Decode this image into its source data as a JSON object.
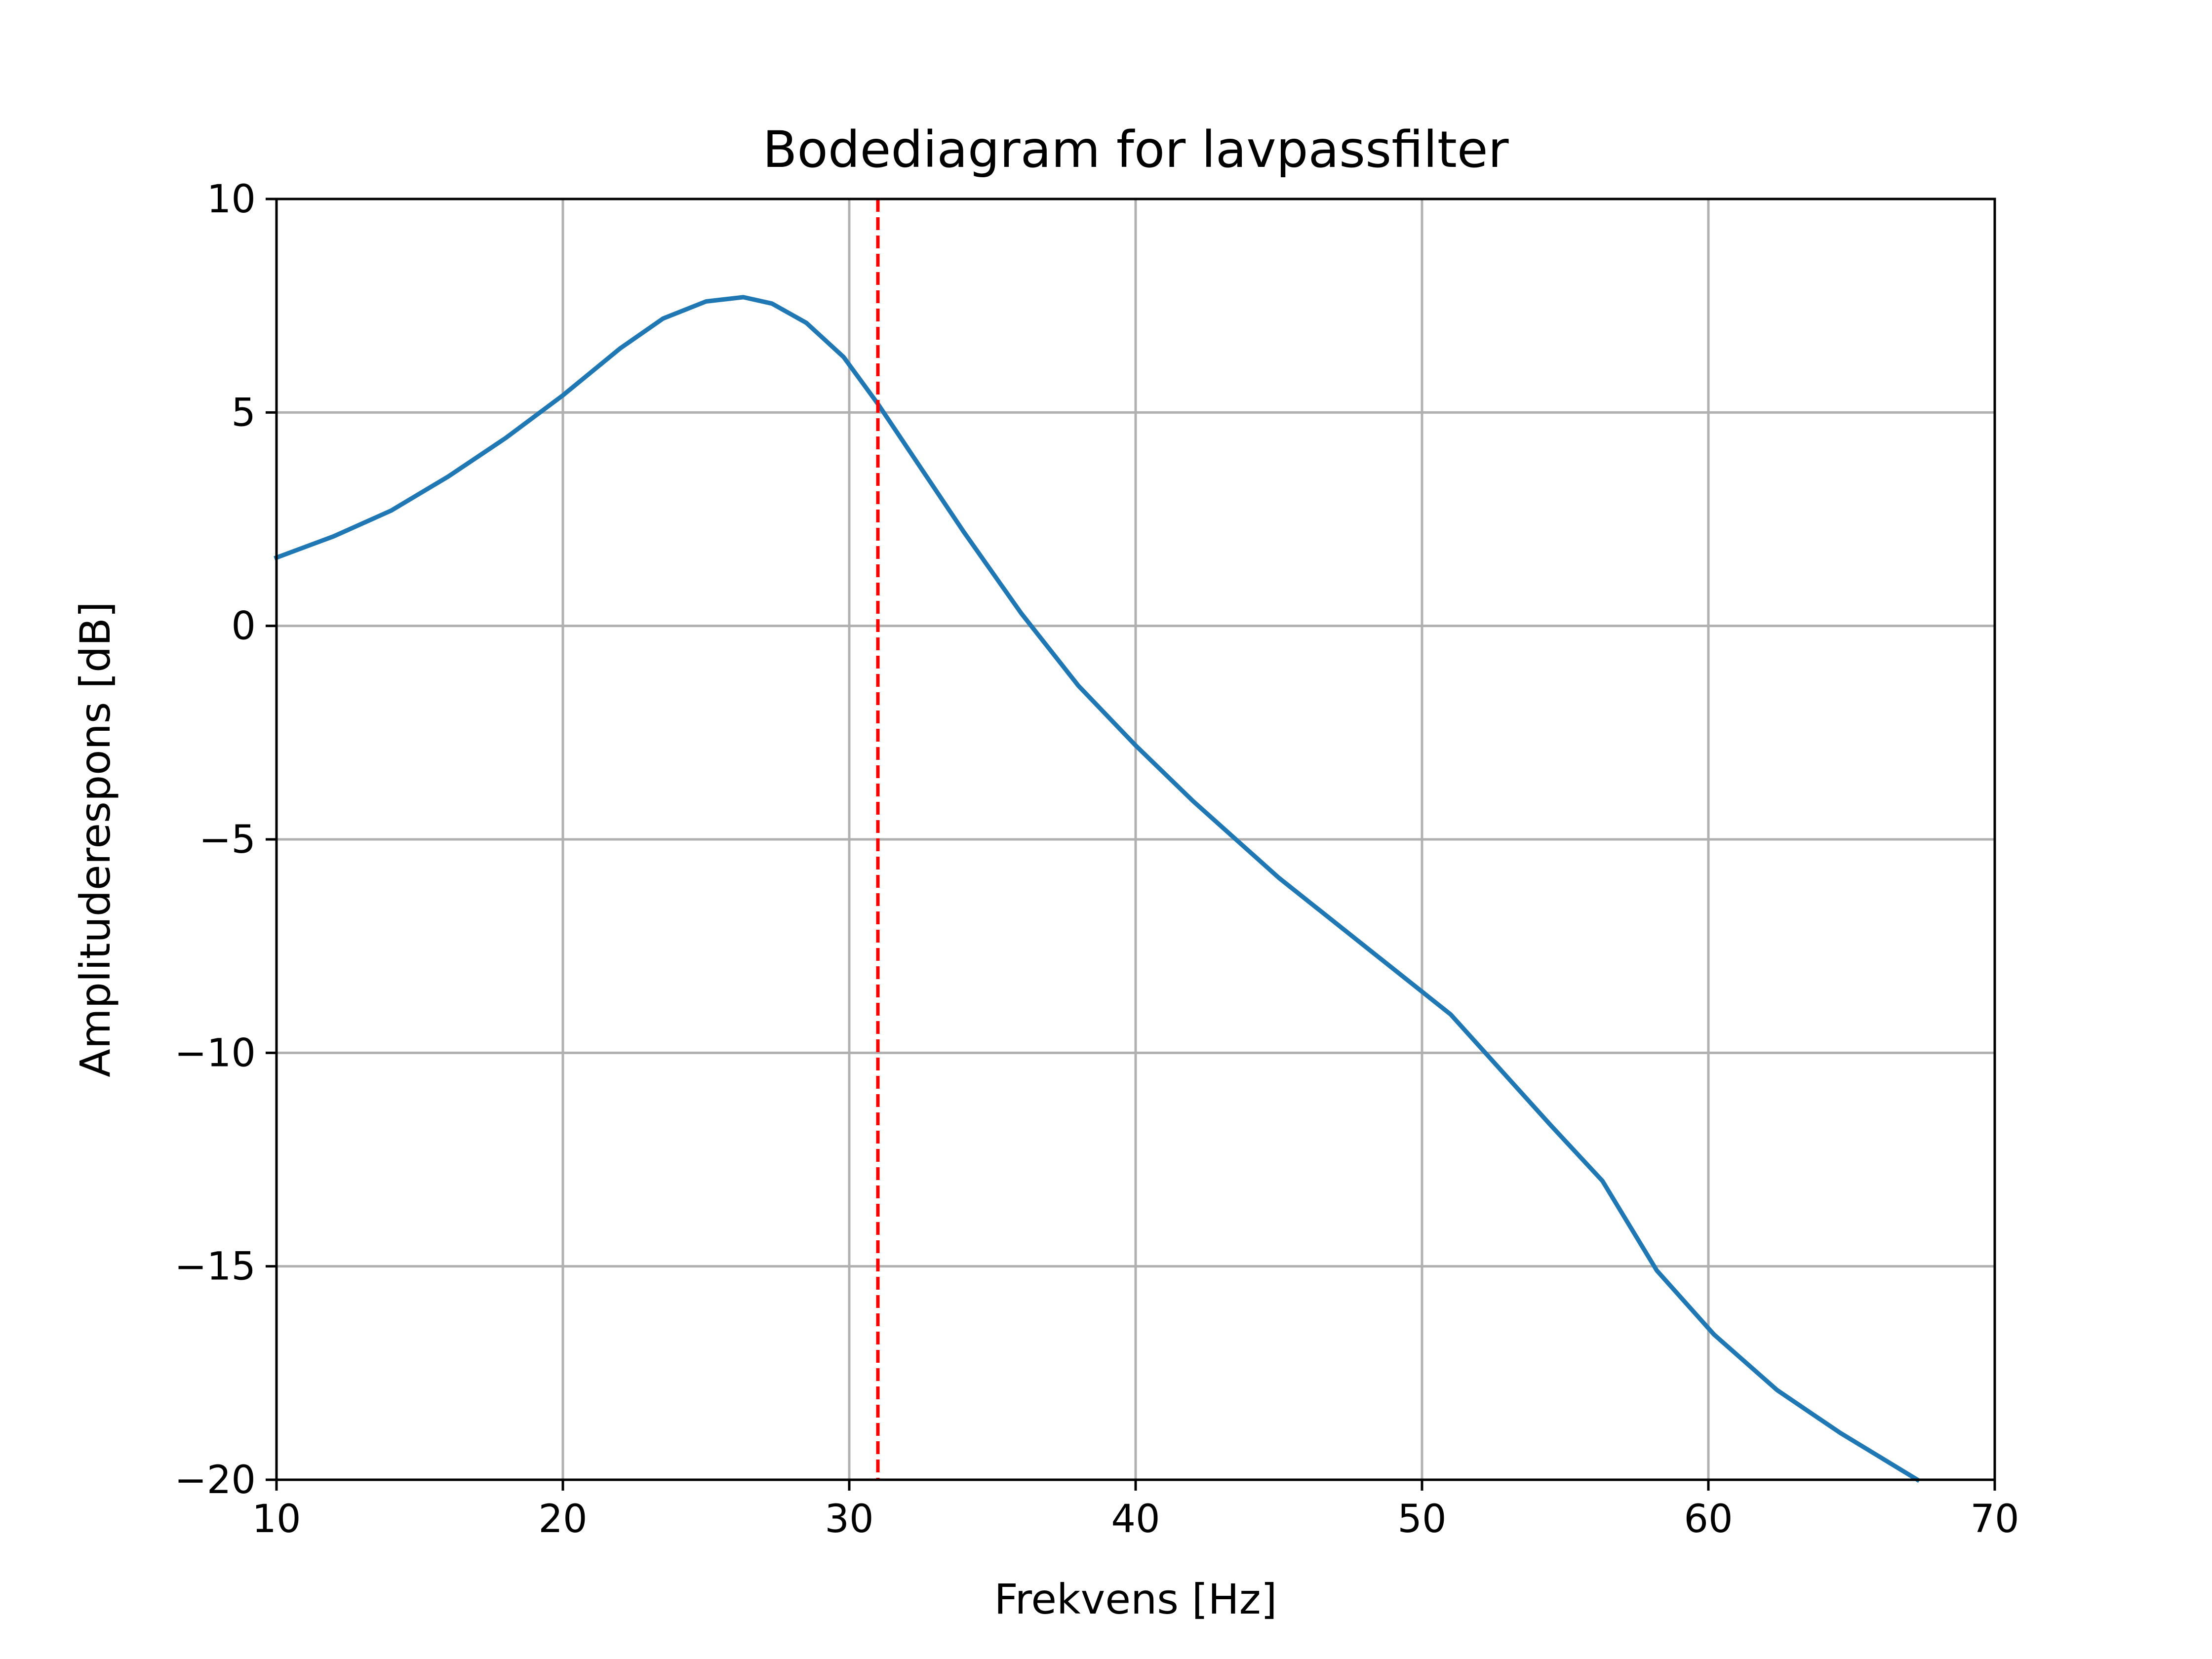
{
  "chart_data": {
    "type": "line",
    "title": "Bodediagram for lavpassfilter",
    "xlabel": "Frekvens [Hz]",
    "ylabel": "Amplituderespons [dB]",
    "xlim": [
      10,
      70
    ],
    "ylim": [
      -20,
      10
    ],
    "xticks": [
      10,
      20,
      30,
      40,
      50,
      60,
      70
    ],
    "xtick_labels": [
      "10",
      "20",
      "30",
      "40",
      "50",
      "60",
      "70"
    ],
    "yticks": [
      -20,
      -15,
      -10,
      -5,
      0,
      5,
      10
    ],
    "ytick_labels": [
      "−20",
      "−15",
      "−10",
      "−5",
      "0",
      "5",
      "10"
    ],
    "grid": true,
    "series": [
      {
        "color": "#1f77b4",
        "x": [
          10,
          12,
          14,
          16,
          18,
          20,
          22,
          23.5,
          25,
          26.3,
          27.3,
          28.5,
          29.8,
          31,
          32.5,
          34,
          36,
          38,
          40,
          42,
          45,
          48,
          51,
          54.5,
          56.3,
          58.2,
          60.2,
          62.4,
          64.6,
          67.3
        ],
        "y": [
          1.6,
          2.1,
          2.7,
          3.5,
          4.4,
          5.4,
          6.5,
          7.2,
          7.6,
          7.7,
          7.55,
          7.1,
          6.3,
          5.2,
          3.7,
          2.2,
          0.3,
          -1.4,
          -2.8,
          -4.1,
          -5.9,
          -7.5,
          -9.1,
          -11.7,
          -13.0,
          -15.1,
          -16.6,
          -17.9,
          -18.9,
          -20.0
        ]
      }
    ],
    "vlines": [
      {
        "x": 31,
        "color": "#ff0000",
        "style": "dashed"
      }
    ]
  }
}
